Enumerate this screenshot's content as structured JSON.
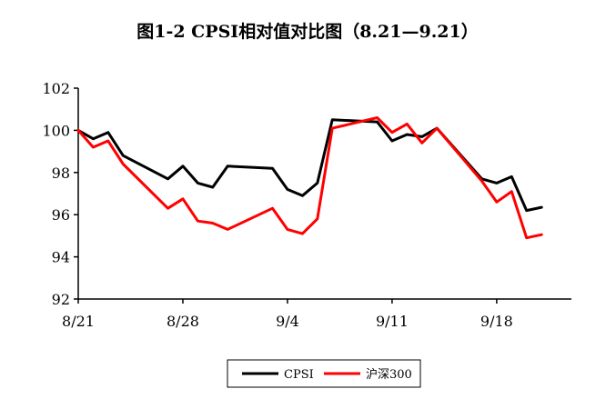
{
  "chart_data": {
    "type": "line",
    "title": "图1-2 CPSI相对值对比图（8.21—9.21）",
    "xlabel": "",
    "ylabel": "",
    "ylim": [
      92,
      102
    ],
    "yticks": [
      92,
      94,
      96,
      98,
      100,
      102
    ],
    "xlim": [
      "2023-08-21",
      "2023-09-23"
    ],
    "xticks": [
      {
        "date": "2023-08-21",
        "label": "8/21"
      },
      {
        "date": "2023-08-28",
        "label": "8/28"
      },
      {
        "date": "2023-09-04",
        "label": "9/4"
      },
      {
        "date": "2023-09-11",
        "label": "9/11"
      },
      {
        "date": "2023-09-18",
        "label": "9/18"
      }
    ],
    "grid": false,
    "legend": "bottom-center",
    "series": [
      {
        "name": "CPSI",
        "color": "#000000",
        "points": [
          {
            "x": "2023-08-21",
            "y": 100.0
          },
          {
            "x": "2023-08-22",
            "y": 99.6
          },
          {
            "x": "2023-08-23",
            "y": 99.9
          },
          {
            "x": "2023-08-24",
            "y": 98.8
          },
          {
            "x": "2023-08-27",
            "y": 97.7
          },
          {
            "x": "2023-08-28",
            "y": 98.3
          },
          {
            "x": "2023-08-29",
            "y": 97.5
          },
          {
            "x": "2023-08-30",
            "y": 97.3
          },
          {
            "x": "2023-08-31",
            "y": 98.3
          },
          {
            "x": "2023-09-03",
            "y": 98.2
          },
          {
            "x": "2023-09-04",
            "y": 97.2
          },
          {
            "x": "2023-09-05",
            "y": 96.9
          },
          {
            "x": "2023-09-06",
            "y": 97.5
          },
          {
            "x": "2023-09-07",
            "y": 100.5
          },
          {
            "x": "2023-09-10",
            "y": 100.4
          },
          {
            "x": "2023-09-11",
            "y": 99.5
          },
          {
            "x": "2023-09-12",
            "y": 99.8
          },
          {
            "x": "2023-09-13",
            "y": 99.7
          },
          {
            "x": "2023-09-14",
            "y": 100.1
          },
          {
            "x": "2023-09-17",
            "y": 97.7
          },
          {
            "x": "2023-09-18",
            "y": 97.5
          },
          {
            "x": "2023-09-19",
            "y": 97.8
          },
          {
            "x": "2023-09-20",
            "y": 96.2
          },
          {
            "x": "2023-09-21",
            "y": 96.35
          }
        ]
      },
      {
        "name": "沪深300",
        "color": "#ff0000",
        "points": [
          {
            "x": "2023-08-21",
            "y": 100.0
          },
          {
            "x": "2023-08-22",
            "y": 99.2
          },
          {
            "x": "2023-08-23",
            "y": 99.5
          },
          {
            "x": "2023-08-24",
            "y": 98.4
          },
          {
            "x": "2023-08-27",
            "y": 96.3
          },
          {
            "x": "2023-08-28",
            "y": 96.75
          },
          {
            "x": "2023-08-29",
            "y": 95.7
          },
          {
            "x": "2023-08-30",
            "y": 95.6
          },
          {
            "x": "2023-08-31",
            "y": 95.3
          },
          {
            "x": "2023-09-03",
            "y": 96.3
          },
          {
            "x": "2023-09-04",
            "y": 95.3
          },
          {
            "x": "2023-09-05",
            "y": 95.1
          },
          {
            "x": "2023-09-06",
            "y": 95.8
          },
          {
            "x": "2023-09-07",
            "y": 100.1
          },
          {
            "x": "2023-09-10",
            "y": 100.6
          },
          {
            "x": "2023-09-11",
            "y": 99.9
          },
          {
            "x": "2023-09-12",
            "y": 100.3
          },
          {
            "x": "2023-09-13",
            "y": 99.4
          },
          {
            "x": "2023-09-14",
            "y": 100.1
          },
          {
            "x": "2023-09-17",
            "y": 97.6
          },
          {
            "x": "2023-09-18",
            "y": 96.6
          },
          {
            "x": "2023-09-19",
            "y": 97.1
          },
          {
            "x": "2023-09-20",
            "y": 94.9
          },
          {
            "x": "2023-09-21",
            "y": 95.05
          }
        ]
      }
    ]
  }
}
